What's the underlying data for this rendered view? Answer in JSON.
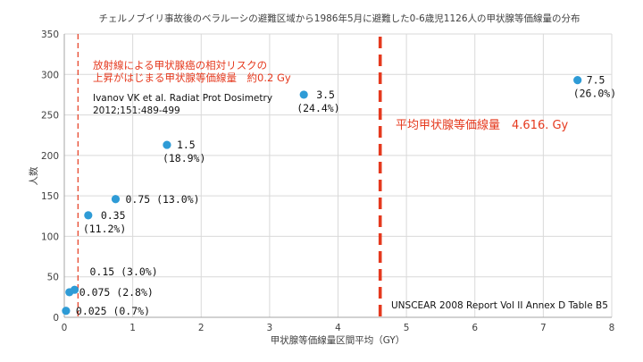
{
  "chart_data": {
    "type": "scatter",
    "title": "チェルノブイリ事故後のベラルーシの避難区域から1986年5月に避難した0-6歳児1126人の甲状腺等価線量の分布",
    "xlabel": "甲状腺等価線量区間平均（GY）",
    "ylabel": "人数",
    "xlim": [
      0,
      8
    ],
    "ylim": [
      0,
      350
    ],
    "x_ticks": [
      "0",
      "1",
      "2",
      "3",
      "4",
      "5",
      "6",
      "7",
      "8"
    ],
    "y_ticks": [
      "0",
      "50",
      "100",
      "150",
      "200",
      "250",
      "300",
      "350"
    ],
    "grid": true,
    "points": [
      {
        "x": 0.025,
        "y": 8,
        "label": "0.025  (0.7%)"
      },
      {
        "x": 0.075,
        "y": 31,
        "label": "0.075  (2.8%)"
      },
      {
        "x": 0.15,
        "y": 34,
        "label": "0.15  (3.0%)"
      },
      {
        "x": 0.35,
        "y": 126,
        "label": "0.35",
        "label2": "(11.2%)"
      },
      {
        "x": 0.75,
        "y": 146,
        "label": "0.75  (13.0%)"
      },
      {
        "x": 1.5,
        "y": 213,
        "label": "1.5",
        "label2": "(18.9%)"
      },
      {
        "x": 3.5,
        "y": 275,
        "label": "3.5",
        "label2": "(24.4%)"
      },
      {
        "x": 7.5,
        "y": 293,
        "label": "7.5",
        "label2": "(26.0%)"
      }
    ],
    "point_color": "#2e9bd6",
    "annotations": {
      "threshold_x": 0.2,
      "threshold_line1": "放射線による甲状腺癌の相対リスクの",
      "threshold_line2": "上昇がはじまる甲状腺等価線量　約0.2 Gy",
      "citation_line1": "Ivanov VK et al. Radiat Prot Dosimetry",
      "citation_line2": "2012;151:489-499",
      "mean_x": 4.616,
      "mean_label": "平均甲状腺等価線量　4.616. Gy",
      "source": "UNSCEAR 2008 Report Vol II Annex D Table B5",
      "annotation_color": "#e5391e"
    }
  }
}
